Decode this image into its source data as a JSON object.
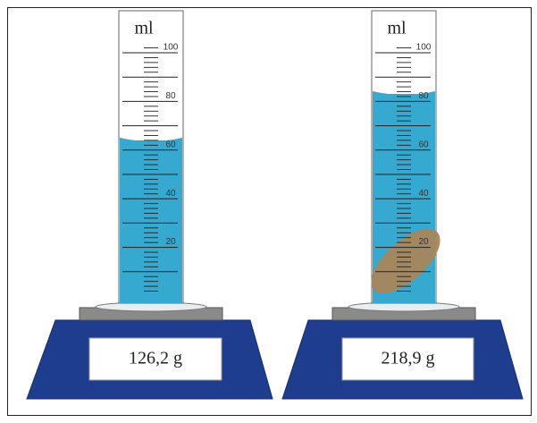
{
  "cylinders": [
    {
      "unit": "ml",
      "scale_labels": [
        100,
        80,
        60,
        40,
        20
      ],
      "reading": "126,2 g"
    },
    {
      "unit": "ml",
      "scale_labels": [
        100,
        80,
        60,
        40,
        20
      ],
      "reading": "218,9 g"
    }
  ]
}
